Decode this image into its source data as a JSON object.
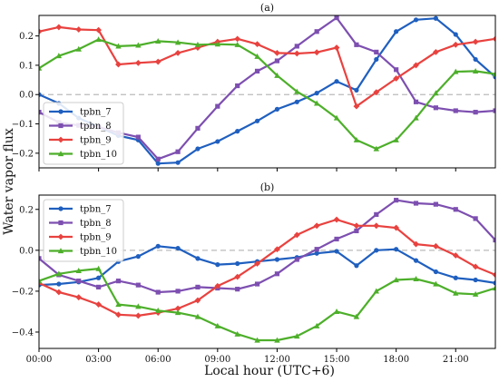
{
  "figure": {
    "ylabel": "Water vapor flux",
    "xlabel": "Local hour (UTC+6)"
  },
  "chart_data": [
    {
      "type": "line",
      "title": "(a)",
      "x": [
        0,
        1,
        2,
        3,
        4,
        5,
        6,
        7,
        8,
        9,
        10,
        11,
        12,
        13,
        14,
        15,
        16,
        17,
        18,
        19,
        20,
        21,
        22,
        23
      ],
      "xticks": [
        "00:00",
        "03:00",
        "06:00",
        "09:00",
        "12:00",
        "15:00",
        "18:00",
        "21:00"
      ],
      "xlim": [
        0,
        23
      ],
      "ylim": [
        -0.25,
        0.27
      ],
      "yticks": [
        -0.2,
        -0.1,
        0.0,
        0.1,
        0.2
      ],
      "hline": 0.0,
      "legend_position": "lower-left",
      "series": [
        {
          "name": "tpbn_7",
          "color": "#1f5fbf",
          "marker": "circle",
          "values": [
            0.0,
            -0.03,
            -0.08,
            -0.11,
            -0.14,
            -0.155,
            -0.235,
            -0.232,
            -0.185,
            -0.16,
            -0.125,
            -0.09,
            -0.05,
            -0.025,
            0.005,
            0.045,
            0.015,
            0.12,
            0.215,
            0.255,
            0.26,
            0.205,
            0.12,
            0.06
          ]
        },
        {
          "name": "tpbn_8",
          "color": "#7d4fb0",
          "marker": "square",
          "values": [
            -0.06,
            -0.095,
            -0.105,
            -0.11,
            -0.13,
            -0.145,
            -0.22,
            -0.195,
            -0.115,
            -0.04,
            0.03,
            0.08,
            0.115,
            0.165,
            0.215,
            0.262,
            0.17,
            0.145,
            0.085,
            -0.025,
            -0.045,
            -0.055,
            -0.06,
            -0.055
          ]
        },
        {
          "name": "tpbn_9",
          "color": "#e8423f",
          "marker": "diamond",
          "values": [
            0.215,
            0.23,
            0.222,
            0.22,
            0.103,
            0.108,
            0.112,
            0.142,
            0.16,
            0.18,
            0.19,
            0.172,
            0.142,
            0.14,
            0.144,
            0.16,
            -0.04,
            0.008,
            0.055,
            0.1,
            0.145,
            0.17,
            0.18,
            0.19
          ]
        },
        {
          "name": "tpbn_10",
          "color": "#4daf2a",
          "marker": "triangle",
          "values": [
            0.09,
            0.132,
            0.155,
            0.188,
            0.165,
            0.168,
            0.182,
            0.178,
            0.17,
            0.172,
            0.17,
            0.13,
            0.065,
            0.01,
            -0.03,
            -0.08,
            -0.155,
            -0.185,
            -0.155,
            -0.08,
            0.005,
            0.078,
            0.08,
            0.07
          ]
        }
      ]
    },
    {
      "type": "line",
      "title": "(b)",
      "x": [
        0,
        1,
        2,
        3,
        4,
        5,
        6,
        7,
        8,
        9,
        10,
        11,
        12,
        13,
        14,
        15,
        16,
        17,
        18,
        19,
        20,
        21,
        22,
        23
      ],
      "xticks": [
        "00:00",
        "03:00",
        "06:00",
        "09:00",
        "12:00",
        "15:00",
        "18:00",
        "21:00"
      ],
      "xlim": [
        0,
        23
      ],
      "ylim": [
        -0.48,
        0.27
      ],
      "yticks": [
        -0.4,
        -0.2,
        0.0,
        0.2
      ],
      "hline": 0.0,
      "legend_position": "upper-left",
      "series": [
        {
          "name": "tpbn_7",
          "color": "#1f5fbf",
          "marker": "circle",
          "values": [
            -0.17,
            -0.165,
            -0.155,
            -0.135,
            -0.055,
            -0.03,
            0.02,
            0.01,
            -0.04,
            -0.07,
            -0.065,
            -0.055,
            -0.045,
            -0.035,
            -0.015,
            -0.005,
            -0.075,
            0.0,
            0.005,
            -0.05,
            -0.105,
            -0.135,
            -0.145,
            -0.16
          ]
        },
        {
          "name": "tpbn_8",
          "color": "#7d4fb0",
          "marker": "square",
          "values": [
            -0.04,
            -0.12,
            -0.15,
            -0.18,
            -0.15,
            -0.17,
            -0.205,
            -0.2,
            -0.18,
            -0.185,
            -0.19,
            -0.165,
            -0.115,
            -0.045,
            0.005,
            0.055,
            0.095,
            0.175,
            0.245,
            0.23,
            0.225,
            0.2,
            0.155,
            0.05
          ]
        },
        {
          "name": "tpbn_9",
          "color": "#e8423f",
          "marker": "diamond",
          "values": [
            -0.16,
            -0.205,
            -0.23,
            -0.265,
            -0.315,
            -0.32,
            -0.305,
            -0.285,
            -0.245,
            -0.175,
            -0.13,
            -0.065,
            0.005,
            0.075,
            0.12,
            0.15,
            0.12,
            0.12,
            0.11,
            0.03,
            0.02,
            -0.025,
            -0.08,
            -0.12
          ]
        },
        {
          "name": "tpbn_10",
          "color": "#4daf2a",
          "marker": "triangle",
          "values": [
            -0.15,
            -0.115,
            -0.1,
            -0.09,
            -0.265,
            -0.275,
            -0.295,
            -0.305,
            -0.325,
            -0.37,
            -0.41,
            -0.44,
            -0.44,
            -0.42,
            -0.37,
            -0.3,
            -0.325,
            -0.2,
            -0.145,
            -0.14,
            -0.165,
            -0.21,
            -0.215,
            -0.185
          ]
        }
      ]
    }
  ]
}
